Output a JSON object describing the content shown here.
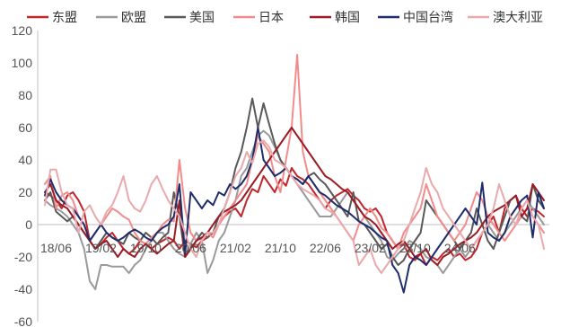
{
  "chart_data": {
    "type": "line",
    "x_ticks": [
      "18/06",
      "19/02",
      "19/10",
      "20/06",
      "21/02",
      "21/10",
      "22/06",
      "23/02",
      "23/10",
      "24/06"
    ],
    "y_ticks": [
      120,
      100,
      80,
      60,
      40,
      20,
      0,
      -20,
      -40,
      -60
    ],
    "ylim": [
      -60,
      120
    ],
    "grid": false,
    "legend_position": "top",
    "x_start": "2018-04",
    "x_step_months": 1,
    "series": [
      {
        "name": "东盟",
        "color": "#c0272d",
        "width": 2,
        "values": [
          20,
          18,
          15,
          10,
          18,
          20,
          15,
          8,
          -10,
          -15,
          -12,
          -8,
          -5,
          -10,
          -15,
          -18,
          -15,
          -10,
          -12,
          -15,
          -12,
          -10,
          -8,
          -10,
          -15,
          -10,
          -12,
          -14,
          -10,
          -8,
          -5,
          0,
          5,
          8,
          10,
          5,
          15,
          22,
          20,
          30,
          25,
          20,
          28,
          24,
          35,
          30,
          28,
          25,
          20,
          15,
          10,
          15,
          18,
          20,
          22,
          18,
          15,
          10,
          8,
          10,
          5,
          -5,
          -10,
          -15,
          -12,
          -20,
          -22,
          -18,
          -25,
          -20,
          -22,
          -18,
          -15,
          -20,
          -18,
          -22,
          -20,
          -15,
          -5,
          0,
          5,
          -5,
          10,
          15,
          18,
          10,
          5,
          10,
          8,
          5
        ]
      },
      {
        "name": "欧盟",
        "color": "#9a9a9a",
        "width": 2,
        "values": [
          15,
          12,
          10,
          8,
          5,
          0,
          -5,
          -15,
          -35,
          -40,
          -25,
          -25,
          -26,
          -26,
          -26,
          -30,
          -25,
          -22,
          -15,
          -10,
          -5,
          -5,
          -10,
          -15,
          -18,
          -20,
          -12,
          -5,
          -10,
          -30,
          -22,
          -10,
          -5,
          5,
          15,
          30,
          35,
          45,
          55,
          58,
          55,
          48,
          40,
          35,
          30,
          25,
          20,
          15,
          10,
          5,
          5,
          5,
          10,
          15,
          20,
          15,
          10,
          5,
          0,
          -5,
          -10,
          -20,
          -22,
          -18,
          -15,
          -10,
          -12,
          -15,
          -20,
          -22,
          -25,
          -30,
          -25,
          -20,
          -15,
          -20,
          -15,
          -10,
          -5,
          0,
          -5,
          -10,
          -5,
          0,
          5,
          10,
          15,
          10,
          5,
          0
        ]
      },
      {
        "name": "美国",
        "color": "#595959",
        "width": 2,
        "values": [
          15,
          20,
          8,
          5,
          2,
          5,
          0,
          -5,
          -10,
          -15,
          -10,
          -5,
          -8,
          -10,
          -12,
          -5,
          -8,
          -10,
          -5,
          -8,
          -12,
          -8,
          -5,
          20,
          5,
          -20,
          -15,
          -10,
          -5,
          -8,
          -5,
          5,
          10,
          20,
          35,
          45,
          60,
          78,
          60,
          75,
          62,
          50,
          40,
          35,
          30,
          28,
          25,
          30,
          32,
          28,
          25,
          20,
          15,
          10,
          5,
          20,
          2,
          0,
          -5,
          -10,
          -15,
          -12,
          -20,
          -25,
          -22,
          -15,
          -10,
          -5,
          15,
          10,
          5,
          0,
          -5,
          -10,
          -15,
          -10,
          -5,
          10,
          0,
          -10,
          -15,
          -5,
          5,
          15,
          18,
          5,
          2,
          25,
          15,
          10
        ]
      },
      {
        "name": "日本",
        "color": "#f28c8c",
        "width": 2,
        "values": [
          25,
          30,
          10,
          18,
          20,
          15,
          5,
          0,
          -10,
          -5,
          0,
          5,
          10,
          8,
          5,
          3,
          -5,
          -10,
          -12,
          -8,
          -5,
          0,
          3,
          2,
          40,
          10,
          -5,
          -10,
          -8,
          -5,
          -8,
          0,
          5,
          10,
          15,
          20,
          25,
          40,
          55,
          50,
          45,
          30,
          20,
          40,
          60,
          105,
          45,
          30,
          25,
          20,
          15,
          10,
          5,
          0,
          -5,
          -10,
          0,
          5,
          10,
          5,
          -2,
          -5,
          -10,
          -15,
          -5,
          0,
          5,
          10,
          25,
          15,
          5,
          0,
          -5,
          -10,
          -5,
          0,
          10,
          20,
          15,
          5,
          0,
          -5,
          -10,
          -5,
          0,
          5,
          10,
          5,
          0,
          -5
        ]
      },
      {
        "name": "韩国",
        "color": "#9b1c25",
        "width": 2,
        "values": [
          20,
          25,
          15,
          12,
          10,
          5,
          0,
          -5,
          -10,
          -15,
          -12,
          -10,
          -15,
          -20,
          -15,
          -18,
          -20,
          -15,
          -12,
          -15,
          -18,
          -15,
          -12,
          -10,
          15,
          -20,
          -15,
          -10,
          -8,
          -5,
          0,
          5,
          8,
          10,
          12,
          15,
          20,
          25,
          30,
          35,
          40,
          45,
          50,
          55,
          60,
          55,
          50,
          45,
          40,
          35,
          30,
          28,
          25,
          22,
          20,
          15,
          10,
          5,
          3,
          0,
          -5,
          -10,
          -15,
          -12,
          -10,
          -15,
          -20,
          -18,
          -15,
          -22,
          -25,
          -20,
          -18,
          -15,
          -12,
          -10,
          -8,
          -5,
          0,
          5,
          8,
          10,
          12,
          15,
          18,
          5,
          10,
          25,
          20,
          15
        ]
      },
      {
        "name": "中国台湾",
        "color": "#1f2d6b",
        "width": 2,
        "values": [
          18,
          28,
          20,
          15,
          12,
          10,
          5,
          0,
          -10,
          -5,
          0,
          -5,
          -8,
          -10,
          -8,
          -5,
          -3,
          -5,
          -8,
          -10,
          -5,
          -2,
          0,
          5,
          25,
          -18,
          20,
          15,
          10,
          15,
          12,
          20,
          18,
          25,
          22,
          25,
          30,
          40,
          60,
          40,
          35,
          30,
          32,
          35,
          30,
          28,
          25,
          30,
          25,
          20,
          18,
          15,
          12,
          10,
          8,
          5,
          2,
          0,
          -2,
          -5,
          -8,
          -10,
          -25,
          -30,
          -42,
          -25,
          -20,
          -22,
          -25,
          -20,
          -15,
          -10,
          -5,
          0,
          5,
          10,
          5,
          0,
          26,
          -5,
          -8,
          -10,
          -5,
          5,
          10,
          15,
          18,
          -8,
          20,
          10
        ]
      },
      {
        "name": "澳大利亚",
        "color": "#e9a9ad",
        "width": 2,
        "values": [
          12,
          34,
          34,
          20,
          12,
          10,
          -5,
          8,
          12,
          5,
          0,
          8,
          12,
          20,
          30,
          15,
          10,
          8,
          15,
          25,
          30,
          22,
          15,
          10,
          5,
          -5,
          -15,
          -20,
          -10,
          -5,
          -5,
          0,
          10,
          20,
          30,
          35,
          45,
          38,
          50,
          52,
          48,
          40,
          38,
          35,
          30,
          25,
          22,
          20,
          18,
          15,
          10,
          8,
          5,
          0,
          -5,
          -10,
          -25,
          -20,
          -15,
          -25,
          -30,
          -25,
          -20,
          -15,
          -10,
          0,
          10,
          20,
          35,
          25,
          20,
          10,
          5,
          0,
          -5,
          -10,
          -15,
          -10,
          -5,
          0,
          10,
          25,
          15,
          5,
          0,
          10,
          15,
          5,
          0,
          -15
        ]
      }
    ]
  }
}
